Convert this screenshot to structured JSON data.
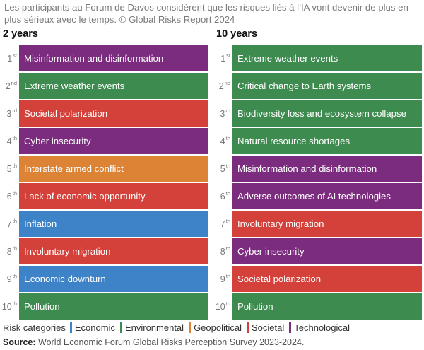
{
  "caption": "Les participants au Forum de Davos considèrent que les risques liés à l’IA vont devenir de plus en plus sérieux avec le temps. © Global Risks Report 2024",
  "colors": {
    "Economic": "#3e82c8",
    "Environmental": "#3d8b4f",
    "Geopolitical": "#dc8336",
    "Societal": "#d4413a",
    "Technological": "#7b2c7e"
  },
  "columns": [
    {
      "title": "2 years",
      "rows": [
        {
          "rank": "1",
          "suffix": "st",
          "label": "Misinformation and disinformation",
          "category": "Technological"
        },
        {
          "rank": "2",
          "suffix": "nd",
          "label": "Extreme weather events",
          "category": "Environmental"
        },
        {
          "rank": "3",
          "suffix": "rd",
          "label": "Societal polarization",
          "category": "Societal"
        },
        {
          "rank": "4",
          "suffix": "th",
          "label": "Cyber insecurity",
          "category": "Technological"
        },
        {
          "rank": "5",
          "suffix": "th",
          "label": "Interstate armed conflict",
          "category": "Geopolitical"
        },
        {
          "rank": "6",
          "suffix": "th",
          "label": "Lack of economic opportunity",
          "category": "Societal"
        },
        {
          "rank": "7",
          "suffix": "th",
          "label": "Inflation",
          "category": "Economic"
        },
        {
          "rank": "8",
          "suffix": "th",
          "label": "Involuntary migration",
          "category": "Societal"
        },
        {
          "rank": "9",
          "suffix": "th",
          "label": "Economic downturn",
          "category": "Economic"
        },
        {
          "rank": "10",
          "suffix": "th",
          "label": "Pollution",
          "category": "Environmental"
        }
      ]
    },
    {
      "title": "10 years",
      "rows": [
        {
          "rank": "1",
          "suffix": "st",
          "label": "Extreme weather events",
          "category": "Environmental"
        },
        {
          "rank": "2",
          "suffix": "nd",
          "label": "Critical change to Earth systems",
          "category": "Environmental"
        },
        {
          "rank": "3",
          "suffix": "rd",
          "label": "Biodiversity loss and ecosystem collapse",
          "category": "Environmental"
        },
        {
          "rank": "4",
          "suffix": "th",
          "label": "Natural resource shortages",
          "category": "Environmental"
        },
        {
          "rank": "5",
          "suffix": "th",
          "label": "Misinformation and disinformation",
          "category": "Technological"
        },
        {
          "rank": "6",
          "suffix": "th",
          "label": "Adverse outcomes of AI technologies",
          "category": "Technological"
        },
        {
          "rank": "7",
          "suffix": "th",
          "label": "Involuntary migration",
          "category": "Societal"
        },
        {
          "rank": "8",
          "suffix": "th",
          "label": "Cyber insecurity",
          "category": "Technological"
        },
        {
          "rank": "9",
          "suffix": "th",
          "label": "Societal polarization",
          "category": "Societal"
        },
        {
          "rank": "10",
          "suffix": "th",
          "label": "Pollution",
          "category": "Environmental"
        }
      ]
    }
  ],
  "legend": {
    "title": "Risk categories",
    "items": [
      "Economic",
      "Environmental",
      "Geopolitical",
      "Societal",
      "Technological"
    ]
  },
  "source": {
    "label": "Source:",
    "text": "World Economic Forum Global Risks Perception Survey 2023-2024."
  }
}
